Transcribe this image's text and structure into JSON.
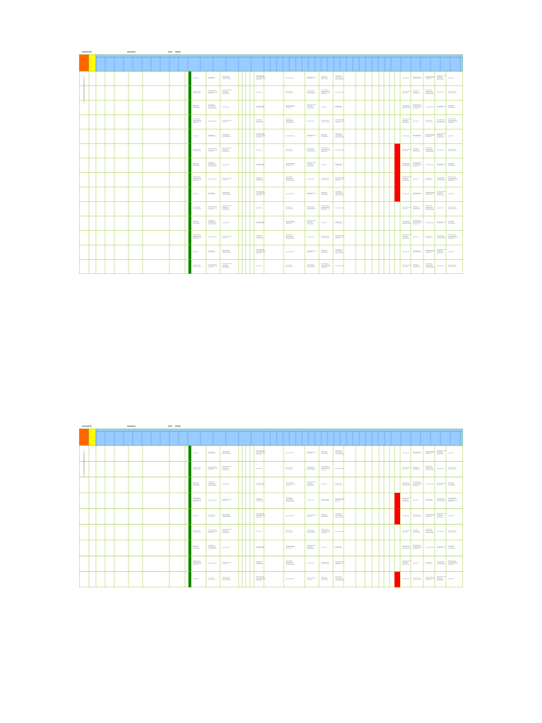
{
  "sheets": [
    {
      "id": "sheet1",
      "rows": 14,
      "red_cells": [
        5,
        6,
        7,
        8
      ],
      "header_labels": [
        "",
        "",
        "",
        "",
        "",
        "",
        ""
      ]
    },
    {
      "id": "sheet2",
      "rows": 9,
      "red_cells": [
        3,
        4,
        8
      ],
      "header_labels": [
        "",
        "",
        "",
        "",
        "",
        "",
        ""
      ]
    }
  ],
  "colors": {
    "orange": "#ff6600",
    "yellow": "#ffff00",
    "blue_header": "#99ccff",
    "green_grid": "#99cc33",
    "dark_green": "#008000",
    "red": "#ff0000"
  }
}
